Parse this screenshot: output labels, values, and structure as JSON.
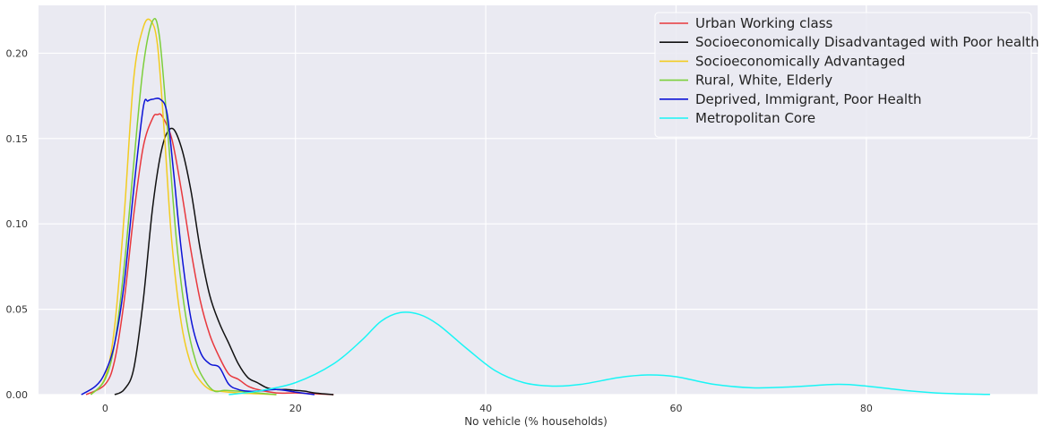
{
  "chart_data": {
    "type": "line",
    "title": "",
    "xlabel": "No vehicle (% households)",
    "ylabel": "",
    "xlim": [
      -7,
      98
    ],
    "ylim": [
      0,
      0.228
    ],
    "x_ticks": [
      0,
      20,
      40,
      60,
      80
    ],
    "y_ticks": [
      0.0,
      0.05,
      0.1,
      0.15,
      0.2
    ],
    "x_tick_labels": [
      "0",
      "20",
      "40",
      "60",
      "80"
    ],
    "y_tick_labels": [
      "0.00",
      "0.05",
      "0.10",
      "0.15",
      "0.20"
    ],
    "grid": true,
    "legend_position": "top-right",
    "series": [
      {
        "name": "Urban Working class",
        "color": "#e8383d",
        "points": [
          [
            -2,
            0
          ],
          [
            0,
            0.006
          ],
          [
            1,
            0.02
          ],
          [
            2,
            0.055
          ],
          [
            3,
            0.105
          ],
          [
            4,
            0.145
          ],
          [
            5,
            0.162
          ],
          [
            5.5,
            0.164
          ],
          [
            6,
            0.163
          ],
          [
            7,
            0.15
          ],
          [
            8,
            0.12
          ],
          [
            9,
            0.085
          ],
          [
            10,
            0.055
          ],
          [
            11,
            0.035
          ],
          [
            12,
            0.022
          ],
          [
            13,
            0.012
          ],
          [
            14,
            0.009
          ],
          [
            15,
            0.005
          ],
          [
            16,
            0.003
          ],
          [
            18,
            0.001
          ],
          [
            20,
            0.001
          ],
          [
            22,
            0.0005
          ],
          [
            24,
            0
          ]
        ]
      },
      {
        "name": "Socioeconomically Disadvantaged with Poor health",
        "color": "#111111",
        "points": [
          [
            1,
            0
          ],
          [
            2,
            0.003
          ],
          [
            3,
            0.015
          ],
          [
            4,
            0.055
          ],
          [
            5,
            0.11
          ],
          [
            6,
            0.145
          ],
          [
            7,
            0.156
          ],
          [
            8,
            0.145
          ],
          [
            9,
            0.12
          ],
          [
            10,
            0.085
          ],
          [
            11,
            0.058
          ],
          [
            12,
            0.042
          ],
          [
            13,
            0.03
          ],
          [
            14,
            0.018
          ],
          [
            15,
            0.01
          ],
          [
            16,
            0.007
          ],
          [
            17,
            0.004
          ],
          [
            18,
            0.003
          ],
          [
            19,
            0.003
          ],
          [
            20,
            0.0025
          ],
          [
            21,
            0.002
          ],
          [
            22,
            0.001
          ],
          [
            24,
            0
          ]
        ]
      },
      {
        "name": "Socioeconomically Advantaged",
        "color": "#f2cc21",
        "points": [
          [
            -1.5,
            0
          ],
          [
            0,
            0.01
          ],
          [
            1,
            0.04
          ],
          [
            2,
            0.105
          ],
          [
            3,
            0.185
          ],
          [
            4,
            0.215
          ],
          [
            4.8,
            0.219
          ],
          [
            5.5,
            0.205
          ],
          [
            6.2,
            0.155
          ],
          [
            7,
            0.09
          ],
          [
            8,
            0.042
          ],
          [
            9,
            0.018
          ],
          [
            10,
            0.008
          ],
          [
            11,
            0.003
          ],
          [
            12,
            0.002
          ],
          [
            14,
            0.001
          ],
          [
            16,
            0.0005
          ],
          [
            18,
            0
          ]
        ]
      },
      {
        "name": "Rural, White, Elderly",
        "color": "#7ccf3b",
        "points": [
          [
            -1.5,
            0
          ],
          [
            0,
            0.009
          ],
          [
            1,
            0.03
          ],
          [
            2,
            0.075
          ],
          [
            3,
            0.135
          ],
          [
            4,
            0.192
          ],
          [
            5,
            0.219
          ],
          [
            5.7,
            0.21
          ],
          [
            6.5,
            0.16
          ],
          [
            7.5,
            0.09
          ],
          [
            8.5,
            0.045
          ],
          [
            9.5,
            0.02
          ],
          [
            10.5,
            0.008
          ],
          [
            11.5,
            0.002
          ],
          [
            12.5,
            0.0025
          ],
          [
            14,
            0.002
          ],
          [
            15,
            0.0015
          ],
          [
            16,
            0.001
          ],
          [
            18,
            0
          ]
        ]
      },
      {
        "name": "Deprived, Immigrant, Poor Health",
        "color": "#0c13d6",
        "points": [
          [
            -2.5,
            0
          ],
          [
            -1,
            0.005
          ],
          [
            0,
            0.013
          ],
          [
            1,
            0.03
          ],
          [
            2,
            0.065
          ],
          [
            3,
            0.12
          ],
          [
            4,
            0.168
          ],
          [
            4.5,
            0.172
          ],
          [
            5,
            0.173
          ],
          [
            5.8,
            0.173
          ],
          [
            6.5,
            0.165
          ],
          [
            7.2,
            0.13
          ],
          [
            8,
            0.085
          ],
          [
            9,
            0.045
          ],
          [
            10,
            0.025
          ],
          [
            11,
            0.018
          ],
          [
            12,
            0.016
          ],
          [
            13,
            0.006
          ],
          [
            14,
            0.003
          ],
          [
            15,
            0.002
          ],
          [
            16,
            0.002
          ],
          [
            18,
            0.003
          ],
          [
            20,
            0.0015
          ],
          [
            22,
            0
          ]
        ]
      },
      {
        "name": "Metropolitan Core",
        "color": "#19f5f5",
        "points": [
          [
            13,
            0
          ],
          [
            16,
            0.002
          ],
          [
            20,
            0.007
          ],
          [
            24,
            0.018
          ],
          [
            27,
            0.032
          ],
          [
            29,
            0.043
          ],
          [
            31,
            0.048
          ],
          [
            33,
            0.047
          ],
          [
            35,
            0.041
          ],
          [
            38,
            0.027
          ],
          [
            41,
            0.014
          ],
          [
            44,
            0.007
          ],
          [
            47,
            0.005
          ],
          [
            50,
            0.006
          ],
          [
            54,
            0.01
          ],
          [
            57,
            0.0115
          ],
          [
            60,
            0.0105
          ],
          [
            64,
            0.006
          ],
          [
            68,
            0.004
          ],
          [
            72,
            0.0045
          ],
          [
            77,
            0.006
          ],
          [
            80,
            0.005
          ],
          [
            84,
            0.0025
          ],
          [
            88,
            0.0008
          ],
          [
            93,
            0.0001
          ]
        ]
      }
    ]
  }
}
